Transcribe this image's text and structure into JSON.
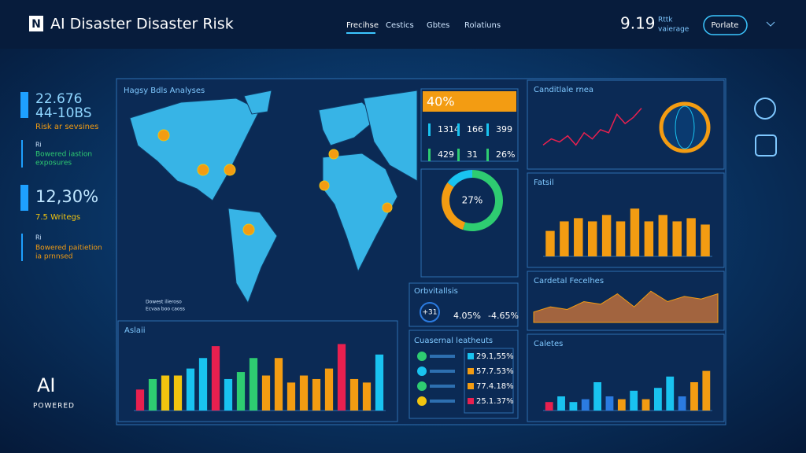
{
  "header": {
    "logo": "N",
    "title": "AI Disaster Disaster Risk",
    "nav": [
      "Frecihse",
      "Cestics",
      "Gbtes",
      "Rolatiuns"
    ],
    "stat": "9.19",
    "stat_label": [
      "Rttk",
      "vaierage"
    ],
    "button": "Porlate"
  },
  "sidebar": {
    "stats": [
      {
        "value": "22.676",
        "sub": "44-10BS",
        "label": "Risk ar sevsines",
        "note": [
          "Ri",
          "Bowered iastion",
          "exposures"
        ]
      },
      {
        "value": "12,30%",
        "sub": "7.5 Writegs",
        "note": [
          "Ri",
          "Bowered paitietion",
          "ia prnnsed"
        ]
      }
    ],
    "badge": "AI",
    "badge_sub": "POWERED"
  },
  "map": {
    "title": "Hagsy Bdls Analyses",
    "legend": [
      "Dowest ilieroso",
      "Ecvaa boo caoss"
    ]
  },
  "summary": {
    "headline": "40%",
    "cells": [
      "1314",
      "166",
      "399",
      "429",
      "31",
      "26%"
    ]
  },
  "orbit": {
    "title": "Orbvitallsis",
    "values": [
      "+31",
      "4.05%",
      "-4.65%"
    ]
  },
  "list": {
    "title": "Cuasernal leatheuts",
    "items": [
      "29.1,55%",
      "57.7.53%",
      "77.4.18%",
      "25.1.37%"
    ],
    "colors": [
      "#2ecc71",
      "#19c3f0",
      "#2ecc71",
      "#f1c40f"
    ],
    "item_colors": [
      "#19c3f0",
      "#f39c12",
      "#f39c12",
      "#e8204f"
    ]
  },
  "chart_data": [
    {
      "type": "bar",
      "title": "Aslaii",
      "values": [
        30,
        45,
        50,
        50,
        60,
        75,
        92,
        45,
        55,
        75,
        50,
        75,
        40,
        50,
        45,
        60,
        95,
        45,
        40,
        80
      ],
      "colors": [
        "#e8204f",
        "#2ecc71",
        "#f1c40f",
        "#f1c40f",
        "#19c3f0",
        "#19c3f0",
        "#e8204f",
        "#19c3f0",
        "#2ecc71",
        "#2ecc71",
        "#f39c12",
        "#f39c12",
        "#f39c12",
        "#f39c12",
        "#f39c12",
        "#f39c12",
        "#e8204f",
        "#f39c12",
        "#f39c12",
        "#19c3f0"
      ],
      "ylim": [
        0,
        100
      ]
    },
    {
      "type": "line",
      "title": "Canditlale rnea",
      "values": [
        20,
        30,
        25,
        35,
        20,
        40,
        30,
        45,
        40,
        70,
        55,
        65,
        80
      ],
      "color": "#e8204f",
      "ylim": [
        0,
        100
      ]
    },
    {
      "type": "bar",
      "title": "Fatsil",
      "values": [
        40,
        55,
        60,
        55,
        65,
        55,
        75,
        55,
        65,
        55,
        60,
        50
      ],
      "color": "#f39c12",
      "ylim": [
        0,
        100
      ]
    },
    {
      "type": "area",
      "title": "Cardetal Fecelhes",
      "values": [
        20,
        30,
        25,
        40,
        35,
        55,
        30,
        60,
        40,
        50,
        45,
        55
      ],
      "color": "#c8733a",
      "ylim": [
        0,
        80
      ]
    },
    {
      "type": "bar",
      "title": "Caletes",
      "values": [
        15,
        25,
        15,
        20,
        50,
        25,
        20,
        35,
        20,
        40,
        60,
        25,
        50,
        70
      ],
      "colors": [
        "#e8204f",
        "#19c3f0",
        "#19c3f0",
        "#2b7be0",
        "#19c3f0",
        "#2b7be0",
        "#f39c12",
        "#19c3f0",
        "#f39c12",
        "#19c3f0",
        "#19c3f0",
        "#2b7be0",
        "#f39c12",
        "#f39c12"
      ],
      "ylim": [
        0,
        100
      ]
    },
    {
      "type": "pie",
      "center_label": "27%",
      "values": [
        55,
        30,
        15
      ],
      "colors": [
        "#2ecc71",
        "#f39c12",
        "#19c3f0"
      ]
    }
  ]
}
